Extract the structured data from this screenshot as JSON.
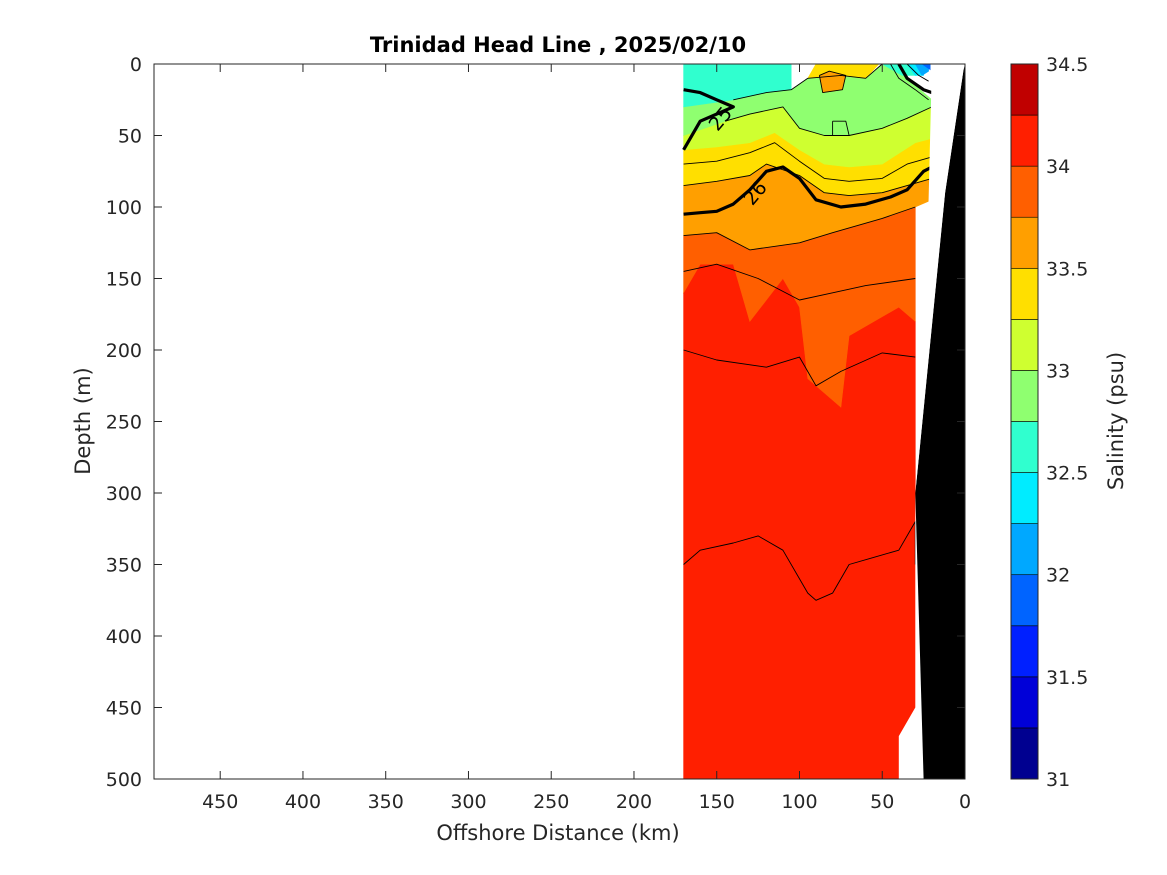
{
  "chart_data": {
    "type": "heatmap",
    "title": "Trinidad Head Line , 2025/02/10",
    "xlabel": "Offshore Distance (km)",
    "ylabel": "Depth (m)",
    "xlim": [
      490,
      0
    ],
    "ylim": [
      0,
      500
    ],
    "x_ticks": [
      450,
      400,
      350,
      300,
      250,
      200,
      150,
      100,
      50,
      0
    ],
    "y_ticks": [
      0,
      50,
      100,
      150,
      200,
      250,
      300,
      350,
      400,
      450,
      500
    ],
    "colorbar": {
      "label": "Salinity (psu)",
      "range": [
        31,
        34.5
      ],
      "ticks": [
        31,
        31.5,
        32,
        32.5,
        33,
        33.5,
        34,
        34.5
      ],
      "levels": [
        31,
        31.25,
        31.5,
        31.75,
        32,
        32.25,
        32.5,
        32.75,
        33,
        33.25,
        33.5,
        33.75,
        34,
        34.25,
        34.5
      ],
      "colors": [
        "#000090",
        "#0000d8",
        "#0020ff",
        "#0064ff",
        "#00a8ff",
        "#00ecff",
        "#30ffcf",
        "#8fff70",
        "#cfff30",
        "#ffdf00",
        "#ff9f00",
        "#ff5f00",
        "#ff1f00",
        "#c00000"
      ]
    },
    "data_extent": {
      "x": [
        170,
        20
      ],
      "depth": [
        0,
        500
      ]
    },
    "bands": [
      {
        "salinity": 34.125,
        "polygon": [
          [
            170,
            160
          ],
          [
            160,
            140
          ],
          [
            140,
            140
          ],
          [
            130,
            180
          ],
          [
            110,
            150
          ],
          [
            100,
            170
          ],
          [
            95,
            220
          ],
          [
            75,
            240
          ],
          [
            70,
            190
          ],
          [
            40,
            170
          ],
          [
            30,
            180
          ],
          [
            30,
            500
          ],
          [
            170,
            500
          ]
        ]
      },
      {
        "salinity": 33.875,
        "polygon": [
          [
            170,
            120
          ],
          [
            150,
            118
          ],
          [
            130,
            130
          ],
          [
            100,
            125
          ],
          [
            80,
            118
          ],
          [
            50,
            108
          ],
          [
            30,
            100
          ],
          [
            30,
            180
          ],
          [
            40,
            170
          ],
          [
            70,
            190
          ],
          [
            75,
            240
          ],
          [
            95,
            220
          ],
          [
            100,
            170
          ],
          [
            110,
            150
          ],
          [
            130,
            180
          ],
          [
            140,
            140
          ],
          [
            160,
            140
          ],
          [
            170,
            160
          ]
        ]
      },
      {
        "salinity": 33.625,
        "polygon": [
          [
            170,
            85
          ],
          [
            150,
            82
          ],
          [
            130,
            78
          ],
          [
            120,
            70
          ],
          [
            100,
            78
          ],
          [
            85,
            90
          ],
          [
            70,
            92
          ],
          [
            50,
            90
          ],
          [
            35,
            85
          ],
          [
            20,
            80
          ],
          [
            20,
            95
          ],
          [
            30,
            100
          ],
          [
            50,
            108
          ],
          [
            80,
            118
          ],
          [
            100,
            125
          ],
          [
            130,
            130
          ],
          [
            150,
            118
          ],
          [
            170,
            120
          ]
        ]
      },
      {
        "salinity": 33.375,
        "polygon": [
          [
            170,
            60
          ],
          [
            150,
            58
          ],
          [
            130,
            55
          ],
          [
            115,
            48
          ],
          [
            100,
            60
          ],
          [
            85,
            70
          ],
          [
            70,
            72
          ],
          [
            50,
            70
          ],
          [
            30,
            55
          ],
          [
            20,
            52
          ],
          [
            20,
            80
          ],
          [
            35,
            85
          ],
          [
            50,
            90
          ],
          [
            70,
            92
          ],
          [
            85,
            90
          ],
          [
            100,
            78
          ],
          [
            120,
            70
          ],
          [
            130,
            78
          ],
          [
            150,
            82
          ],
          [
            170,
            85
          ]
        ]
      },
      {
        "salinity": 33.125,
        "polygon": [
          [
            145,
            40
          ],
          [
            130,
            35
          ],
          [
            110,
            30
          ],
          [
            100,
            45
          ],
          [
            85,
            50
          ],
          [
            70,
            50
          ],
          [
            50,
            45
          ],
          [
            35,
            38
          ],
          [
            20,
            30
          ],
          [
            20,
            52
          ],
          [
            30,
            55
          ],
          [
            50,
            70
          ],
          [
            70,
            72
          ],
          [
            85,
            70
          ],
          [
            100,
            60
          ],
          [
            115,
            48
          ],
          [
            130,
            55
          ],
          [
            150,
            58
          ],
          [
            170,
            60
          ],
          [
            170,
            50
          ]
        ]
      },
      {
        "salinity": 32.875,
        "polygon": [
          [
            140,
            25
          ],
          [
            120,
            20
          ],
          [
            105,
            18
          ],
          [
            95,
            10
          ],
          [
            75,
            8
          ],
          [
            60,
            10
          ],
          [
            50,
            0
          ],
          [
            40,
            5
          ],
          [
            30,
            15
          ],
          [
            20,
            25
          ],
          [
            20,
            30
          ],
          [
            35,
            38
          ],
          [
            50,
            45
          ],
          [
            70,
            50
          ],
          [
            85,
            50
          ],
          [
            100,
            45
          ],
          [
            110,
            30
          ],
          [
            130,
            35
          ],
          [
            145,
            40
          ],
          [
            170,
            50
          ],
          [
            170,
            30
          ]
        ]
      },
      {
        "salinity": 32.625,
        "polygon": [
          [
            170,
            0
          ],
          [
            105,
            0
          ],
          [
            105,
            18
          ],
          [
            120,
            20
          ],
          [
            140,
            25
          ],
          [
            170,
            30
          ]
        ]
      },
      {
        "salinity": 33.375,
        "polygon": [
          [
            95,
            10
          ],
          [
            90,
            0
          ],
          [
            52,
            0
          ],
          [
            60,
            10
          ],
          [
            75,
            8
          ]
        ]
      },
      {
        "salinity": 33.625,
        "polygon": [
          [
            88,
            8
          ],
          [
            82,
            5
          ],
          [
            72,
            8
          ],
          [
            74,
            18
          ],
          [
            86,
            20
          ]
        ]
      },
      {
        "salinity": 32.625,
        "polygon": [
          [
            50,
            0
          ],
          [
            35,
            0
          ],
          [
            30,
            8
          ],
          [
            38,
            8
          ]
        ]
      },
      {
        "salinity": 32.375,
        "polygon": [
          [
            35,
            0
          ],
          [
            25,
            0
          ],
          [
            25,
            8
          ],
          [
            30,
            8
          ]
        ]
      },
      {
        "salinity": 32.125,
        "polygon": [
          [
            30,
            0
          ],
          [
            22,
            0
          ],
          [
            22,
            5
          ],
          [
            26,
            8
          ]
        ]
      },
      {
        "salinity": 31.875,
        "polygon": [
          [
            26,
            0
          ],
          [
            21,
            0
          ],
          [
            21,
            4
          ]
        ]
      }
    ],
    "thin_contours": [
      [
        [
          170,
          145
        ],
        [
          150,
          140
        ],
        [
          125,
          150
        ],
        [
          100,
          165
        ],
        [
          80,
          160
        ],
        [
          60,
          155
        ],
        [
          30,
          150
        ]
      ],
      [
        [
          170,
          120
        ],
        [
          150,
          118
        ],
        [
          130,
          130
        ],
        [
          100,
          125
        ],
        [
          80,
          118
        ],
        [
          50,
          108
        ],
        [
          30,
          100
        ]
      ],
      [
        [
          170,
          200
        ],
        [
          150,
          207
        ],
        [
          120,
          212
        ],
        [
          100,
          205
        ],
        [
          90,
          225
        ],
        [
          75,
          215
        ],
        [
          50,
          202
        ],
        [
          30,
          205
        ]
      ],
      [
        [
          170,
          350
        ],
        [
          160,
          340
        ],
        [
          140,
          335
        ],
        [
          125,
          330
        ],
        [
          110,
          340
        ],
        [
          95,
          370
        ],
        [
          90,
          375
        ],
        [
          80,
          370
        ],
        [
          70,
          350
        ],
        [
          55,
          345
        ],
        [
          40,
          340
        ],
        [
          30,
          320
        ],
        [
          30,
          350
        ]
      ],
      [
        [
          170,
          85
        ],
        [
          150,
          82
        ],
        [
          130,
          78
        ],
        [
          120,
          70
        ],
        [
          100,
          78
        ],
        [
          85,
          90
        ],
        [
          70,
          92
        ],
        [
          50,
          90
        ],
        [
          35,
          85
        ],
        [
          20,
          80
        ]
      ],
      [
        [
          170,
          70
        ],
        [
          150,
          68
        ],
        [
          130,
          62
        ],
        [
          115,
          55
        ],
        [
          100,
          68
        ],
        [
          85,
          80
        ],
        [
          70,
          82
        ],
        [
          50,
          80
        ],
        [
          35,
          70
        ],
        [
          20,
          65
        ]
      ],
      [
        [
          145,
          40
        ],
        [
          130,
          35
        ],
        [
          110,
          30
        ],
        [
          100,
          45
        ],
        [
          85,
          50
        ],
        [
          70,
          50
        ],
        [
          50,
          45
        ],
        [
          35,
          38
        ],
        [
          20,
          30
        ]
      ],
      [
        [
          140,
          25
        ],
        [
          120,
          20
        ],
        [
          105,
          18
        ],
        [
          95,
          10
        ],
        [
          75,
          8
        ],
        [
          60,
          10
        ],
        [
          50,
          0
        ]
      ],
      [
        [
          88,
          8
        ],
        [
          82,
          5
        ],
        [
          72,
          8
        ],
        [
          74,
          18
        ],
        [
          86,
          20
        ],
        [
          88,
          8
        ]
      ],
      [
        [
          80,
          40
        ],
        [
          72,
          40
        ],
        [
          70,
          50
        ],
        [
          80,
          50
        ],
        [
          80,
          40
        ]
      ],
      [
        [
          45,
          0
        ],
        [
          40,
          10
        ],
        [
          30,
          18
        ],
        [
          22,
          25
        ]
      ],
      [
        [
          35,
          0
        ],
        [
          28,
          8
        ],
        [
          22,
          12
        ]
      ]
    ],
    "thick_contours": [
      {
        "label": "25",
        "points": [
          [
            170,
            18
          ],
          [
            160,
            20
          ],
          [
            150,
            25
          ],
          [
            140,
            30
          ],
          [
            160,
            40
          ],
          [
            170,
            60
          ]
        ]
      },
      {
        "label": "26",
        "points": [
          [
            170,
            105
          ],
          [
            160,
            104
          ],
          [
            150,
            103
          ],
          [
            140,
            98
          ],
          [
            130,
            88
          ],
          [
            120,
            75
          ],
          [
            110,
            72
          ],
          [
            100,
            80
          ],
          [
            90,
            95
          ],
          [
            75,
            100
          ],
          [
            60,
            98
          ],
          [
            45,
            93
          ],
          [
            35,
            88
          ],
          [
            25,
            75
          ],
          [
            20,
            72
          ]
        ]
      },
      {
        "label": "",
        "points": [
          [
            40,
            0
          ],
          [
            35,
            10
          ],
          [
            25,
            18
          ],
          [
            20,
            20
          ]
        ]
      }
    ],
    "contour_label_positions": [
      {
        "label": "25",
        "x": 148,
        "depth": 38,
        "angle": -50
      },
      {
        "label": "26",
        "x": 127,
        "depth": 90,
        "angle": -50
      }
    ],
    "bathymetry_polygon": [
      [
        20,
        0
      ],
      [
        0,
        0
      ],
      [
        0,
        500
      ],
      [
        25,
        500
      ],
      [
        30,
        300
      ],
      [
        45,
        0
      ]
    ],
    "bathymetry_color": "#000000",
    "bathymetry_wall": [
      [
        20,
        0
      ],
      [
        0,
        0
      ],
      [
        0,
        500
      ],
      [
        25,
        500
      ],
      [
        30,
        300
      ],
      [
        24,
        90
      ]
    ]
  }
}
